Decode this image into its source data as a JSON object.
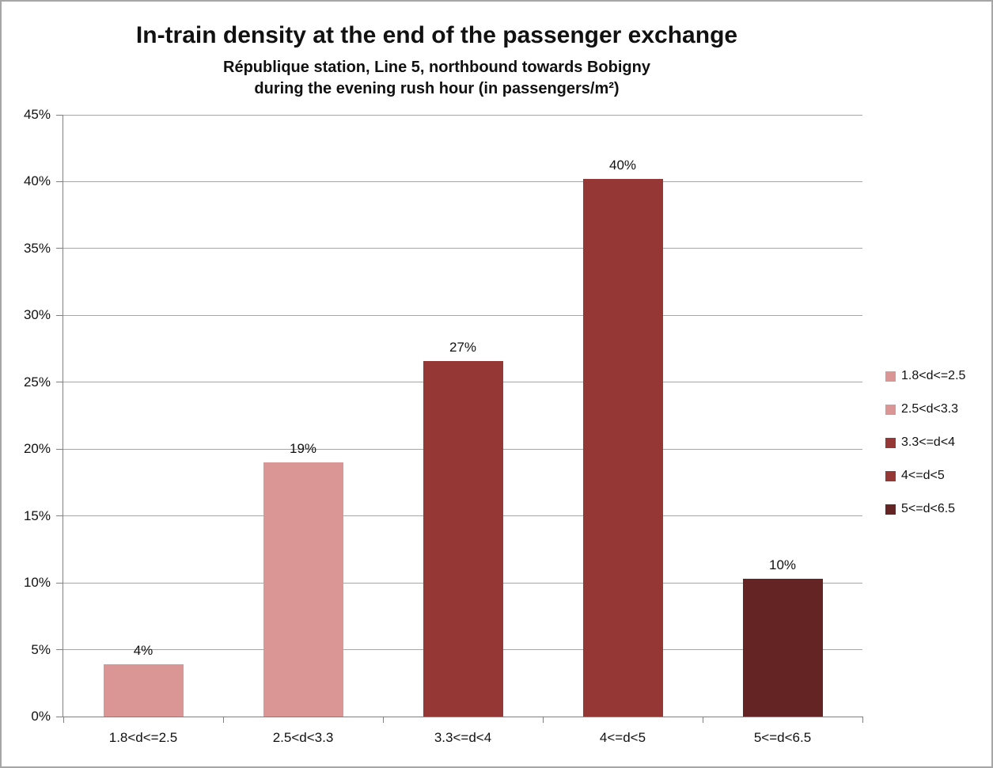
{
  "chart_data": {
    "type": "bar",
    "title": "In-train density at the end of the passenger exchange",
    "subtitle_line1": "République station, Line 5, northbound towards Bobigny",
    "subtitle_line2": "during the evening rush hour (in passengers/m²)",
    "categories": [
      "1.8<d<=2.5",
      "2.5<d<3.3",
      "3.3<=d<4",
      "4<=d<5",
      "5<=d<6.5"
    ],
    "values": [
      3.9,
      19.0,
      26.6,
      40.2,
      10.3
    ],
    "data_labels": [
      "4%",
      "19%",
      "27%",
      "40%",
      "10%"
    ],
    "bar_colors": [
      "#d99694",
      "#d99694",
      "#953735",
      "#953735",
      "#632423"
    ],
    "legend": [
      {
        "label": "1.8<d<=2.5",
        "color": "#d99694"
      },
      {
        "label": "2.5<d<3.3",
        "color": "#d99694"
      },
      {
        "label": "3.3<=d<4",
        "color": "#953735"
      },
      {
        "label": "4<=d<5",
        "color": "#953735"
      },
      {
        "label": "5<=d<6.5",
        "color": "#632423"
      }
    ],
    "legend_position": "right",
    "xlabel": "",
    "ylabel": "",
    "ylim": [
      0,
      45
    ],
    "y_tick_step": 5,
    "y_tick_labels": [
      "0%",
      "5%",
      "10%",
      "15%",
      "20%",
      "25%",
      "30%",
      "35%",
      "40%",
      "45%"
    ],
    "grid": true,
    "axis_color": "#808080",
    "gridline_color": "#a6a6a6"
  }
}
